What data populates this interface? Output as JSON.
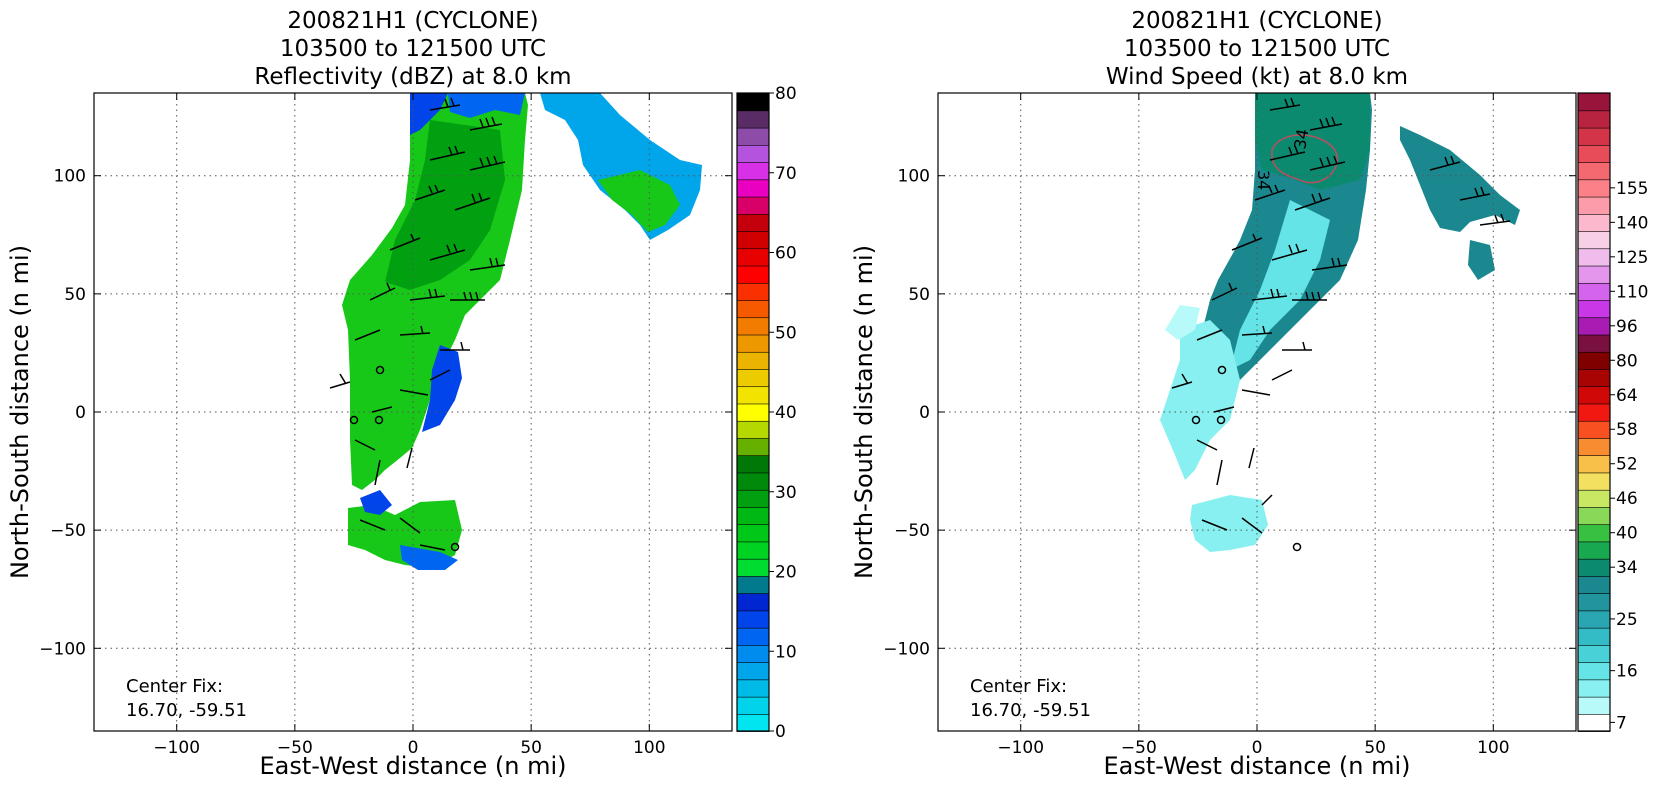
{
  "chart_data": [
    {
      "type": "heatmap",
      "title_lines": [
        "200821H1 (CYCLONE)",
        "103500 to 121500 UTC",
        "Reflectivity (dBZ) at 8.0 km"
      ],
      "xlabel": "East-West distance (n mi)",
      "ylabel": "North-South distance (n mi)",
      "xlim": [
        -135,
        135
      ],
      "ylim": [
        -135,
        135
      ],
      "xticks": [
        -100,
        -50,
        0,
        50,
        100
      ],
      "yticks": [
        -100,
        -50,
        0,
        50,
        100
      ],
      "xtick_labels": [
        "−100",
        "−50",
        "0",
        "50",
        "100"
      ],
      "ytick_labels": [
        "−100",
        "−50",
        "0",
        "50",
        "100"
      ],
      "grid": true,
      "annotation_lines": [
        "Center Fix:",
        "16.70, -59.51"
      ],
      "colorbar": {
        "min": 0,
        "max": 80,
        "ticks": [
          0,
          10,
          20,
          30,
          40,
          50,
          60,
          70,
          80
        ],
        "tick_labels": [
          "0",
          "10",
          "20",
          "30",
          "40",
          "50",
          "60",
          "70",
          "80"
        ],
        "colors": [
          "#00e5ef",
          "#00d3ea",
          "#00bbe8",
          "#00a5ea",
          "#008cef",
          "#0066f2",
          "#0044ea",
          "#0026d2",
          "#007a8c",
          "#00dc30",
          "#00d222",
          "#00c818",
          "#00b814",
          "#00a010",
          "#008a0c",
          "#007808",
          "#66b000",
          "#b4d800",
          "#ffff00",
          "#f2e400",
          "#eccc00",
          "#eab400",
          "#ee9800",
          "#f27c00",
          "#f65a00",
          "#fa3000",
          "#ff0000",
          "#e80000",
          "#d00000",
          "#c4000c",
          "#d80068",
          "#ea00c0",
          "#d830e6",
          "#b454de",
          "#8c4ca8",
          "#5a2c66",
          "#000000"
        ]
      }
    },
    {
      "type": "heatmap",
      "title_lines": [
        "200821H1 (CYCLONE)",
        "103500 to 121500 UTC",
        "Wind Speed (kt) at 8.0 km"
      ],
      "xlabel": "East-West distance (n mi)",
      "ylabel": "North-South distance (n mi)",
      "xlim": [
        -135,
        135
      ],
      "ylim": [
        -135,
        135
      ],
      "xticks": [
        -100,
        -50,
        0,
        50,
        100
      ],
      "yticks": [
        -100,
        -50,
        0,
        50,
        100
      ],
      "xtick_labels": [
        "−100",
        "−50",
        "0",
        "50",
        "100"
      ],
      "ytick_labels": [
        "−100",
        "−50",
        "0",
        "50",
        "100"
      ],
      "grid": true,
      "annotation_lines": [
        "Center Fix:",
        "16.70, -59.51"
      ],
      "contour_labels": [
        "34",
        "34"
      ],
      "colorbar": {
        "ticks": [
          7,
          16,
          25,
          34,
          40,
          46,
          52,
          58,
          64,
          80,
          96,
          110,
          125,
          140,
          155
        ],
        "tick_labels": [
          "7",
          "16",
          "25",
          "34",
          "40",
          "46",
          "52",
          "58",
          "64",
          "80",
          "96",
          "110",
          "125",
          "140",
          "155"
        ],
        "tick_indices": [
          0,
          3,
          6,
          9,
          11,
          13,
          15,
          17,
          19,
          21,
          23,
          25,
          27,
          29,
          31
        ],
        "colors": [
          "#ffffff",
          "#b8fafa",
          "#88f0f0",
          "#64e4e6",
          "#48d2d8",
          "#34bcc6",
          "#2aa6b2",
          "#22949e",
          "#1a888e",
          "#0c8a70",
          "#18a850",
          "#38c040",
          "#8ad858",
          "#c8e864",
          "#f4e060",
          "#f8c048",
          "#f88c30",
          "#f85020",
          "#f01810",
          "#d00808",
          "#a80404",
          "#800000",
          "#7a1040",
          "#a81cb4",
          "#c838e6",
          "#d464ec",
          "#e496ec",
          "#f0bcec",
          "#f8d0e6",
          "#fcb8cc",
          "#fc9caa",
          "#fc8088",
          "#f46870",
          "#e84c58",
          "#d43448",
          "#b82440",
          "#98143a"
        ]
      }
    }
  ]
}
